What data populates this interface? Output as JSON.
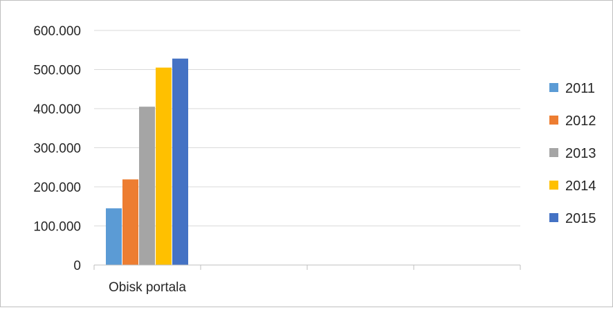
{
  "chart_data": {
    "type": "bar",
    "categories": [
      "Obisk portala",
      "",
      "",
      ""
    ],
    "series": [
      {
        "name": "2011",
        "values": [
          145000,
          null,
          null,
          null
        ],
        "color": "#5B9BD5"
      },
      {
        "name": "2012",
        "values": [
          219000,
          null,
          null,
          null
        ],
        "color": "#ED7D31"
      },
      {
        "name": "2013",
        "values": [
          405000,
          null,
          null,
          null
        ],
        "color": "#A5A5A5"
      },
      {
        "name": "2014",
        "values": [
          505000,
          null,
          null,
          null
        ],
        "color": "#FFC000"
      },
      {
        "name": "2015",
        "values": [
          528000,
          null,
          null,
          null
        ],
        "color": "#4472C4"
      }
    ],
    "y_ticks": [
      "0",
      "100.000",
      "200.000",
      "300.000",
      "400.000",
      "500.000",
      "600.000"
    ],
    "ylim": [
      0,
      600000
    ],
    "grid": true,
    "legend_position": "right",
    "title": "",
    "xlabel": "",
    "ylabel": ""
  }
}
